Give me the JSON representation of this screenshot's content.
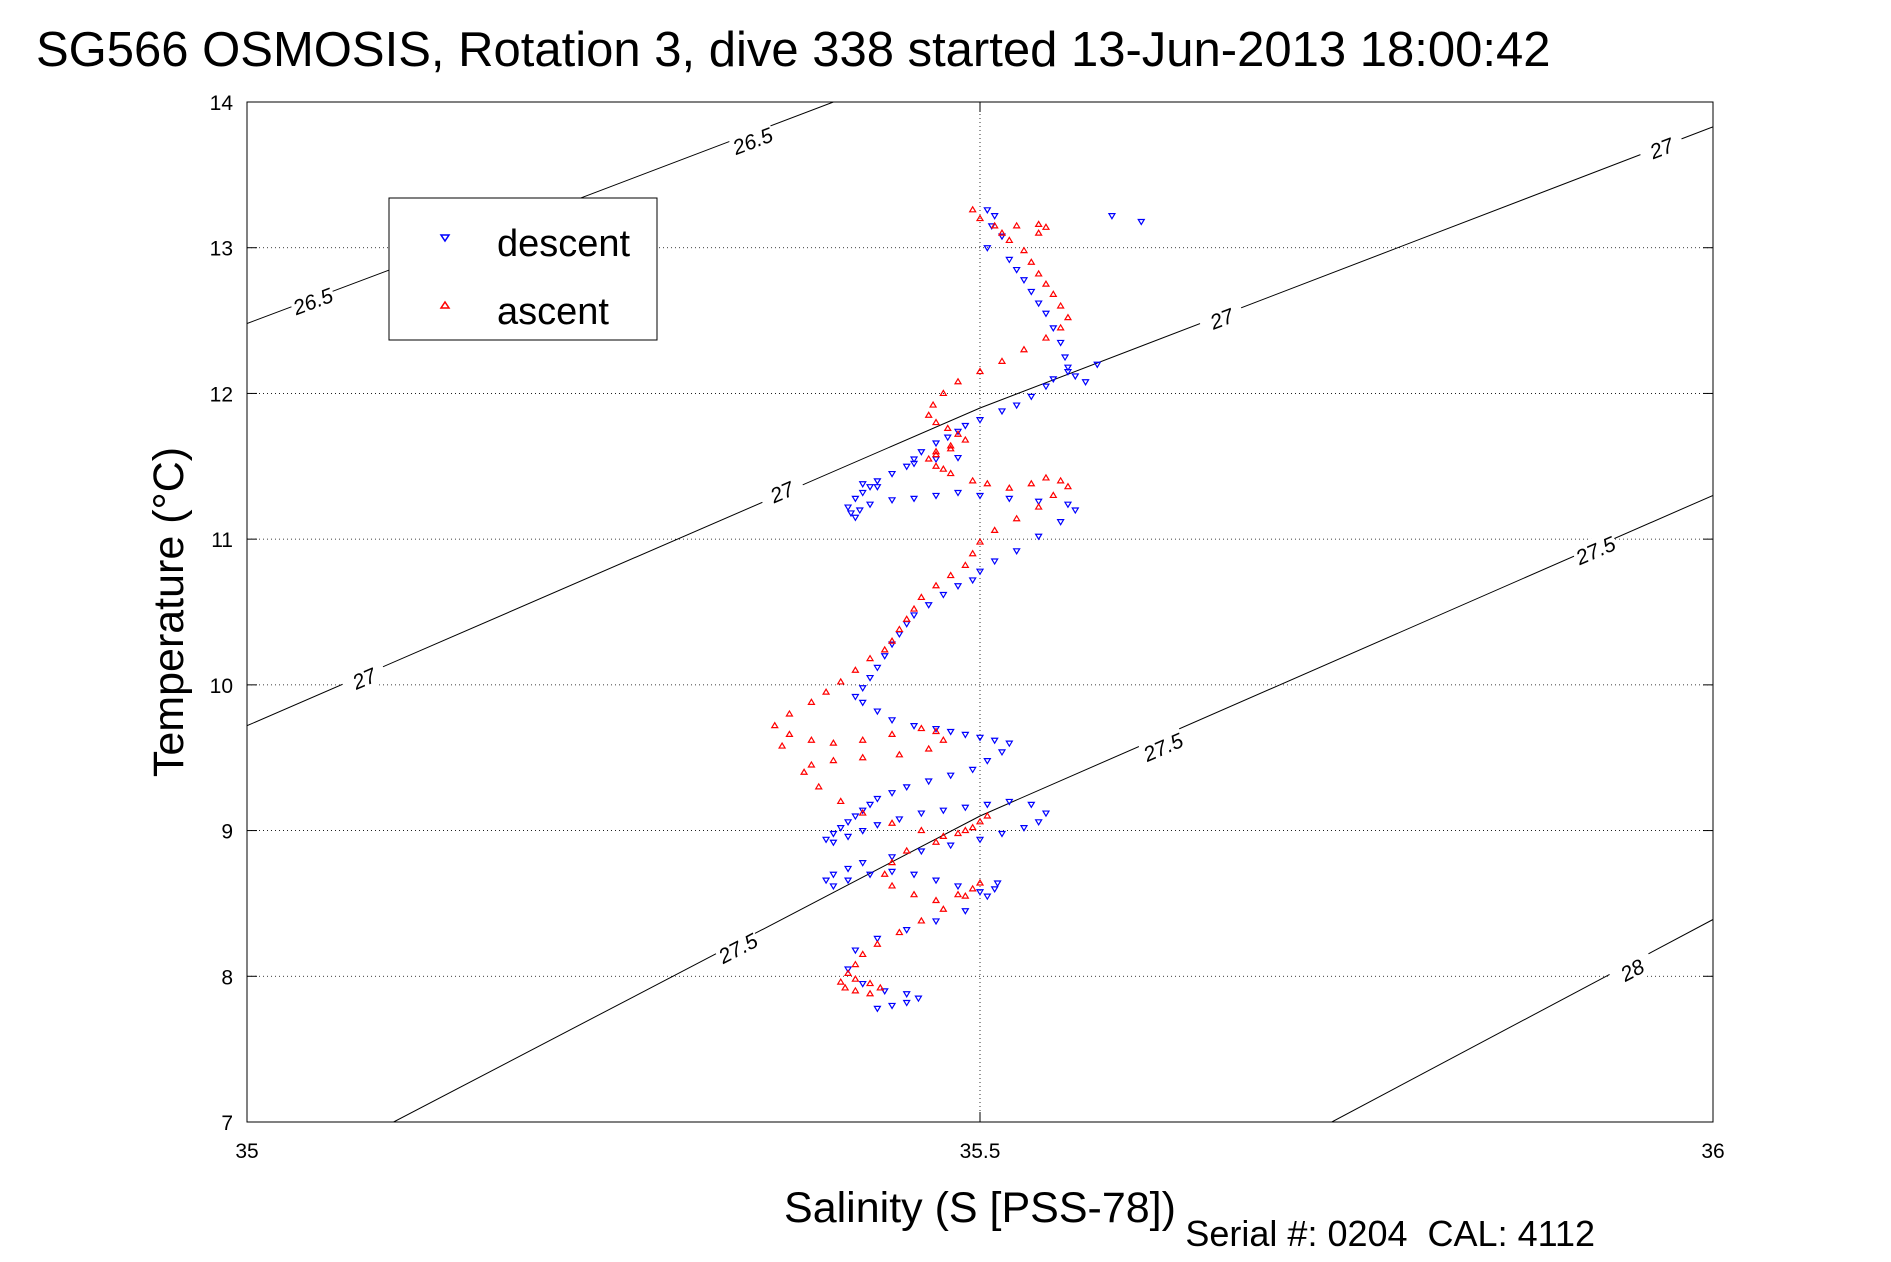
{
  "chart_data": {
    "type": "scatter",
    "title": "SG566 OSMOSIS, Rotation 3, dive 338 started 13-Jun-2013 18:00:42",
    "xlabel": "Salinity (S [PSS-78])",
    "ylabel": "Temperature (°C)",
    "footer": "Serial #: 0204  CAL: 4112",
    "xlim": [
      35,
      36
    ],
    "ylim": [
      7,
      14
    ],
    "xticks": [
      35,
      35.5,
      36
    ],
    "xtick_labels": [
      "35",
      "35.5",
      "36"
    ],
    "yticks": [
      7,
      8,
      9,
      10,
      11,
      12,
      13,
      14
    ],
    "ytick_labels": [
      "7",
      "8",
      "9",
      "10",
      "11",
      "12",
      "13",
      "14"
    ],
    "grid": true,
    "legend_position": "top-left",
    "colors": {
      "descent": "#0000ff",
      "ascent": "#ff0000",
      "contour": "#000000"
    },
    "contours": [
      {
        "level_label": "26.5",
        "points": [
          [
            35.0,
            12.48
          ],
          [
            35.23,
            13.35
          ],
          [
            35.4,
            14.0
          ]
        ],
        "label_positions": [
          [
            35.045,
            12.63
          ],
          [
            35.345,
            13.73
          ]
        ]
      },
      {
        "level_label": "27",
        "points": [
          [
            35.0,
            9.72
          ],
          [
            35.5,
            11.9
          ],
          [
            36.0,
            13.83
          ]
        ],
        "label_positions": [
          [
            35.08,
            10.04
          ],
          [
            35.365,
            11.32
          ],
          [
            35.665,
            12.51
          ],
          [
            35.965,
            13.68
          ]
        ]
      },
      {
        "level_label": "27.5",
        "points": [
          [
            35.1,
            7.0
          ],
          [
            35.5,
            9.1
          ],
          [
            36.0,
            11.3
          ]
        ],
        "label_positions": [
          [
            35.335,
            8.19
          ],
          [
            35.625,
            9.57
          ],
          [
            35.92,
            10.92
          ]
        ]
      },
      {
        "level_label": "28",
        "points": [
          [
            35.74,
            7.0
          ],
          [
            36.0,
            8.39
          ]
        ],
        "label_positions": [
          [
            35.945,
            8.04
          ]
        ]
      }
    ],
    "series": [
      {
        "name": "descent",
        "marker": "triangle-down",
        "x": [
          35.505,
          35.51,
          35.508,
          35.515,
          35.505,
          35.52,
          35.525,
          35.53,
          35.535,
          35.54,
          35.545,
          35.55,
          35.555,
          35.558,
          35.56,
          35.565,
          35.572,
          35.58,
          35.56,
          35.55,
          35.545,
          35.535,
          35.525,
          35.515,
          35.5,
          35.49,
          35.485,
          35.478,
          35.47,
          35.46,
          35.455,
          35.45,
          35.44,
          35.43,
          35.425,
          35.42,
          35.415,
          35.41,
          35.412,
          35.418,
          35.425,
          35.44,
          35.455,
          35.47,
          35.485,
          35.5,
          35.52,
          35.54,
          35.56,
          35.565,
          35.555,
          35.54,
          35.525,
          35.51,
          35.5,
          35.495,
          35.485,
          35.475,
          35.465,
          35.455,
          35.45,
          35.445,
          35.44,
          35.435,
          35.43,
          35.425,
          35.42,
          35.415,
          35.42,
          35.43,
          35.44,
          35.455,
          35.47,
          35.48,
          35.49,
          35.5,
          35.51,
          35.52,
          35.515,
          35.505,
          35.495,
          35.48,
          35.465,
          35.45,
          35.44,
          35.43,
          35.425,
          35.42,
          35.415,
          35.41,
          35.405,
          35.4,
          35.395,
          35.4,
          35.41,
          35.42,
          35.43,
          35.445,
          35.46,
          35.475,
          35.49,
          35.505,
          35.52,
          35.535,
          35.545,
          35.54,
          35.53,
          35.515,
          35.5,
          35.48,
          35.46,
          35.44,
          35.42,
          35.41,
          35.4,
          35.395,
          35.4,
          35.41,
          35.425,
          35.44,
          35.455,
          35.47,
          35.485,
          35.5,
          35.51,
          35.512,
          35.505,
          35.49,
          35.47,
          35.45,
          35.43,
          35.415,
          35.41,
          35.42,
          35.435,
          35.45,
          35.458,
          35.45,
          35.44,
          35.43,
          35.59,
          35.61,
          35.42,
          35.43,
          35.415,
          35.455,
          35.47,
          35.485
        ],
        "y": [
          13.26,
          13.22,
          13.15,
          13.08,
          13.0,
          12.92,
          12.85,
          12.78,
          12.7,
          12.62,
          12.55,
          12.45,
          12.35,
          12.25,
          12.18,
          12.12,
          12.08,
          12.2,
          12.15,
          12.1,
          12.05,
          11.98,
          11.92,
          11.88,
          11.82,
          11.78,
          11.74,
          11.7,
          11.66,
          11.6,
          11.55,
          11.5,
          11.45,
          11.4,
          11.36,
          11.32,
          11.28,
          11.22,
          11.18,
          11.2,
          11.24,
          11.27,
          11.28,
          11.3,
          11.32,
          11.3,
          11.28,
          11.26,
          11.24,
          11.2,
          11.12,
          11.02,
          10.92,
          10.85,
          10.78,
          10.72,
          10.68,
          10.62,
          10.55,
          10.48,
          10.42,
          10.35,
          10.28,
          10.2,
          10.12,
          10.05,
          9.98,
          9.92,
          9.88,
          9.82,
          9.76,
          9.72,
          9.7,
          9.68,
          9.66,
          9.64,
          9.62,
          9.6,
          9.54,
          9.48,
          9.42,
          9.38,
          9.34,
          9.3,
          9.26,
          9.22,
          9.18,
          9.14,
          9.1,
          9.06,
          9.02,
          8.98,
          8.94,
          8.92,
          8.96,
          9.0,
          9.04,
          9.08,
          9.12,
          9.14,
          9.16,
          9.18,
          9.2,
          9.18,
          9.12,
          9.06,
          9.02,
          8.98,
          8.94,
          8.9,
          8.86,
          8.82,
          8.78,
          8.74,
          8.7,
          8.66,
          8.62,
          8.66,
          8.7,
          8.72,
          8.7,
          8.66,
          8.62,
          8.58,
          8.6,
          8.64,
          8.55,
          8.45,
          8.38,
          8.32,
          8.26,
          8.18,
          8.05,
          7.95,
          7.9,
          7.88,
          7.85,
          7.82,
          7.8,
          7.78,
          13.22,
          13.18,
          11.38,
          11.36,
          11.15,
          11.52,
          11.55,
          11.56
        ]
      },
      {
        "name": "ascent",
        "marker": "triangle-up",
        "x": [
          35.495,
          35.5,
          35.51,
          35.515,
          35.52,
          35.53,
          35.535,
          35.54,
          35.545,
          35.55,
          35.555,
          35.56,
          35.555,
          35.545,
          35.53,
          35.515,
          35.5,
          35.485,
          35.475,
          35.468,
          35.465,
          35.47,
          35.478,
          35.485,
          35.49,
          35.48,
          35.47,
          35.465,
          35.47,
          35.48,
          35.495,
          35.505,
          35.52,
          35.535,
          35.545,
          35.555,
          35.56,
          35.55,
          35.54,
          35.525,
          35.51,
          35.5,
          35.495,
          35.49,
          35.48,
          35.47,
          35.46,
          35.455,
          35.45,
          35.445,
          35.44,
          35.435,
          35.425,
          35.415,
          35.405,
          35.395,
          35.385,
          35.37,
          35.36,
          35.37,
          35.385,
          35.4,
          35.42,
          35.44,
          35.46,
          35.47,
          35.475,
          35.465,
          35.445,
          35.42,
          35.4,
          35.385,
          35.38,
          35.39,
          35.405,
          35.42,
          35.44,
          35.46,
          35.475,
          35.485,
          35.495,
          35.5,
          35.505,
          35.49,
          35.47,
          35.45,
          35.44,
          35.435,
          35.44,
          35.455,
          35.47,
          35.485,
          35.495,
          35.5,
          35.49,
          35.475,
          35.46,
          35.445,
          35.43,
          35.42,
          35.415,
          35.41,
          35.405,
          35.408,
          35.415,
          35.425,
          35.432,
          35.425,
          35.415,
          35.525,
          35.54,
          35.47,
          35.48,
          35.475,
          35.365,
          35.54,
          35.545
        ],
        "y": [
          13.26,
          13.2,
          13.15,
          13.1,
          13.05,
          12.98,
          12.9,
          12.82,
          12.75,
          12.68,
          12.6,
          12.52,
          12.45,
          12.38,
          12.3,
          12.22,
          12.15,
          12.08,
          12.0,
          11.92,
          11.85,
          11.8,
          11.76,
          11.72,
          11.68,
          11.64,
          11.6,
          11.55,
          11.5,
          11.45,
          11.4,
          11.38,
          11.35,
          11.38,
          11.42,
          11.4,
          11.36,
          11.3,
          11.22,
          11.14,
          11.06,
          10.98,
          10.9,
          10.82,
          10.75,
          10.68,
          10.6,
          10.52,
          10.45,
          10.38,
          10.3,
          10.24,
          10.18,
          10.1,
          10.02,
          9.95,
          9.88,
          9.8,
          9.72,
          9.66,
          9.62,
          9.6,
          9.62,
          9.66,
          9.7,
          9.68,
          9.62,
          9.56,
          9.52,
          9.5,
          9.48,
          9.45,
          9.4,
          9.3,
          9.2,
          9.12,
          9.05,
          9.0,
          8.96,
          8.98,
          9.02,
          9.06,
          9.1,
          9.0,
          8.92,
          8.86,
          8.78,
          8.7,
          8.62,
          8.56,
          8.52,
          8.56,
          8.6,
          8.64,
          8.55,
          8.46,
          8.38,
          8.3,
          8.22,
          8.15,
          8.08,
          8.02,
          7.96,
          7.92,
          7.9,
          7.88,
          7.92,
          7.95,
          7.98,
          13.15,
          13.1,
          11.58,
          11.62,
          11.48,
          9.58,
          13.16,
          13.14
        ]
      }
    ]
  }
}
